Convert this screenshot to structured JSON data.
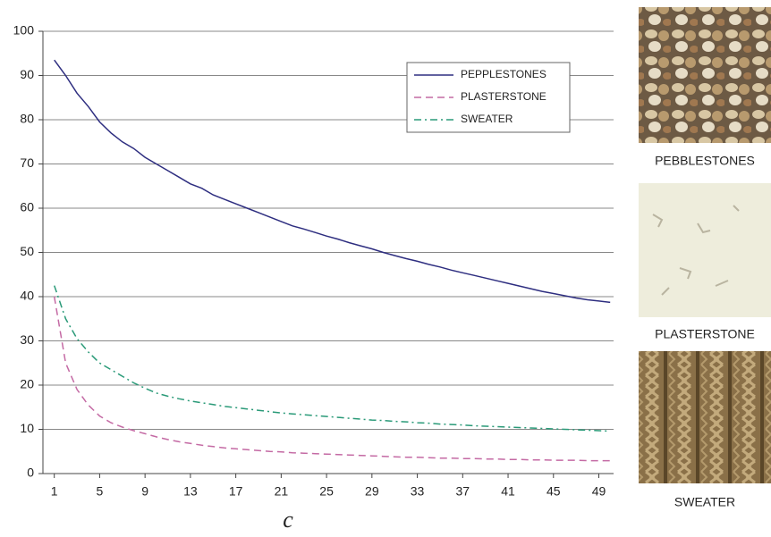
{
  "chart_data": {
    "type": "line",
    "x_label": "c",
    "x": [
      1,
      2,
      3,
      4,
      5,
      6,
      7,
      8,
      9,
      10,
      11,
      12,
      13,
      14,
      15,
      16,
      17,
      18,
      19,
      20,
      21,
      22,
      23,
      24,
      25,
      26,
      27,
      28,
      29,
      30,
      31,
      32,
      33,
      34,
      35,
      36,
      37,
      38,
      39,
      40,
      41,
      42,
      43,
      44,
      45,
      46,
      47,
      48,
      49,
      50
    ],
    "series": [
      {
        "name": "PEPPLESTONES",
        "color": "#2e2e80",
        "dash": "solid",
        "values": [
          93.5,
          90,
          86,
          83,
          79.5,
          77,
          75,
          73.5,
          71.5,
          70,
          68.5,
          67,
          65.5,
          64.5,
          63,
          62,
          61,
          60,
          59,
          58,
          57,
          56,
          55.3,
          54.5,
          53.7,
          53,
          52.2,
          51.5,
          50.8,
          50,
          49.3,
          48.6,
          48,
          47.3,
          46.7,
          46,
          45.4,
          44.8,
          44.2,
          43.6,
          43,
          42.4,
          41.8,
          41.2,
          40.7,
          40.2,
          39.7,
          39.3,
          39,
          38.7
        ]
      },
      {
        "name": "PLASTERSTONE",
        "color": "#c46aa4",
        "dash": "dash",
        "values": [
          40,
          25,
          19,
          15.5,
          13,
          11.5,
          10.5,
          9.7,
          9,
          8.3,
          7.7,
          7.2,
          6.8,
          6.4,
          6.1,
          5.8,
          5.6,
          5.4,
          5.2,
          5,
          4.9,
          4.7,
          4.6,
          4.5,
          4.4,
          4.3,
          4.2,
          4.1,
          4,
          3.9,
          3.8,
          3.7,
          3.7,
          3.6,
          3.5,
          3.5,
          3.4,
          3.4,
          3.3,
          3.3,
          3.2,
          3.2,
          3.1,
          3.1,
          3,
          3,
          3,
          2.9,
          2.9,
          2.9
        ]
      },
      {
        "name": "SWEATER",
        "color": "#2a9a78",
        "dash": "dashdot",
        "values": [
          42.5,
          35,
          30.5,
          27.5,
          25,
          23.5,
          22,
          20.5,
          19.3,
          18.2,
          17.5,
          16.9,
          16.4,
          16,
          15.6,
          15.2,
          14.9,
          14.6,
          14.3,
          14,
          13.7,
          13.5,
          13.3,
          13.1,
          12.9,
          12.7,
          12.5,
          12.3,
          12.1,
          12,
          11.8,
          11.7,
          11.5,
          11.4,
          11.2,
          11.1,
          11,
          10.8,
          10.7,
          10.6,
          10.5,
          10.4,
          10.3,
          10.2,
          10.1,
          10,
          9.9,
          9.8,
          9.7,
          9.6
        ]
      }
    ],
    "xlim": [
      0,
      50.3
    ],
    "xticks": [
      1,
      5,
      9,
      13,
      17,
      21,
      25,
      29,
      33,
      37,
      41,
      45,
      49
    ],
    "ylim": [
      0,
      100
    ],
    "yticks": [
      0,
      10,
      20,
      30,
      40,
      50,
      60,
      70,
      80,
      90,
      100
    ],
    "grid": true,
    "legend": "top-right"
  },
  "image_panels": [
    {
      "label": "PEBBLESTONES"
    },
    {
      "label": "PLASTERSTONE"
    },
    {
      "label": "SWEATER"
    }
  ]
}
